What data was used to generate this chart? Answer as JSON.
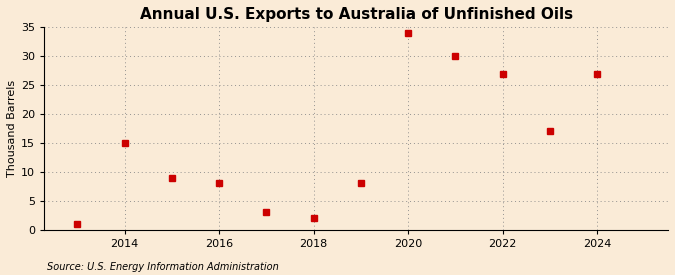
{
  "title": "Annual U.S. Exports to Australia of Unfinished Oils",
  "ylabel": "Thousand Barrels",
  "source": "Source: U.S. Energy Information Administration",
  "years": [
    2013,
    2014,
    2015,
    2016,
    2017,
    2018,
    2019,
    2020,
    2021,
    2022,
    2023,
    2024
  ],
  "values": [
    1,
    15,
    9,
    8,
    3,
    2,
    8,
    34,
    30,
    27,
    17,
    27
  ],
  "xlim": [
    2012.3,
    2025.5
  ],
  "ylim": [
    0,
    35
  ],
  "yticks": [
    0,
    5,
    10,
    15,
    20,
    25,
    30,
    35
  ],
  "xticks": [
    2014,
    2016,
    2018,
    2020,
    2022,
    2024
  ],
  "marker_color": "#cc0000",
  "marker": "s",
  "marker_size": 4,
  "background_color": "#faebd7",
  "grid_color": "#888888",
  "title_fontsize": 11,
  "label_fontsize": 8,
  "tick_fontsize": 8,
  "source_fontsize": 7
}
